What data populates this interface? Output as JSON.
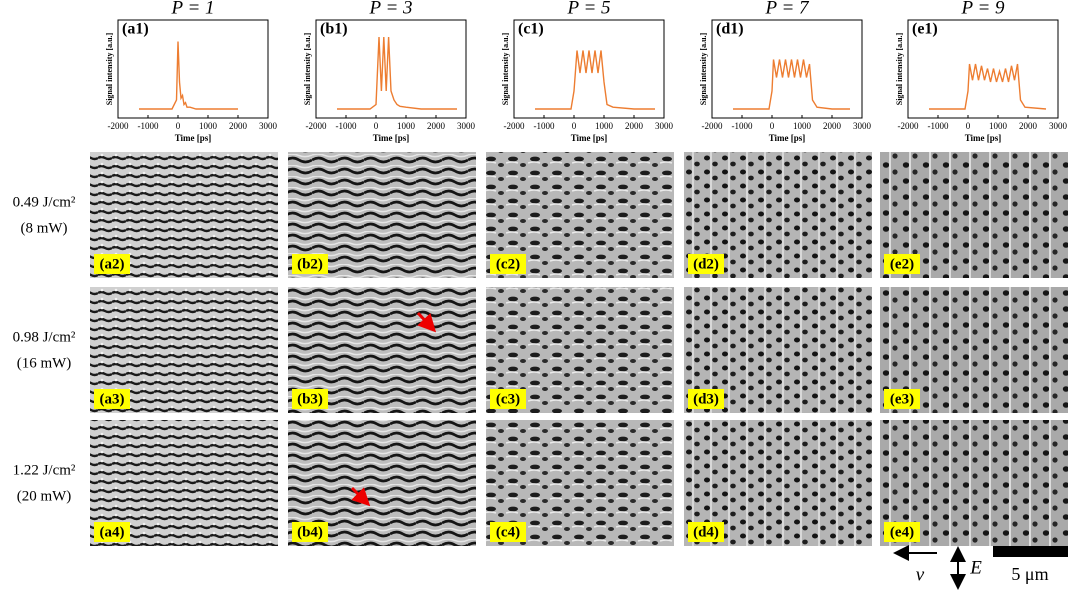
{
  "chart_data": [
    {
      "type": "line",
      "title": "P = 1",
      "panel_label": "(a1)",
      "x_label": "Time [ps]",
      "y_label": "Signal intensity [a.u.]",
      "color": "#ed7d31",
      "xlim": [
        -2000,
        3000
      ],
      "xticks": [
        -2000,
        -1000,
        0,
        1000,
        2000,
        3000
      ],
      "ylim": [
        0,
        1
      ],
      "x": [
        -1300,
        -200,
        -50,
        0,
        50,
        100,
        150,
        200,
        250,
        300,
        400,
        600,
        1000,
        1500,
        2000
      ],
      "values": [
        0.1,
        0.1,
        0.2,
        0.85,
        0.4,
        0.22,
        0.25,
        0.15,
        0.17,
        0.12,
        0.12,
        0.1,
        0.1,
        0.1,
        0.1
      ]
    },
    {
      "type": "line",
      "title": "P = 3",
      "panel_label": "(b1)",
      "x_label": "Time [ps]",
      "y_label": "Signal intensity [a.u.]",
      "color": "#ed7d31",
      "xlim": [
        -2000,
        3000
      ],
      "xticks": [
        -2000,
        -1000,
        0,
        1000,
        2000,
        3000
      ],
      "ylim": [
        0,
        1
      ],
      "x": [
        -1300,
        -200,
        0,
        100,
        180,
        260,
        340,
        420,
        500,
        600,
        700,
        800,
        1000,
        1500,
        2000,
        2700
      ],
      "values": [
        0.1,
        0.1,
        0.15,
        0.9,
        0.3,
        0.9,
        0.3,
        0.9,
        0.3,
        0.2,
        0.15,
        0.13,
        0.12,
        0.1,
        0.1,
        0.1
      ]
    },
    {
      "type": "line",
      "title": "P = 5",
      "panel_label": "(c1)",
      "x_label": "Time [ps]",
      "y_label": "Signal intensity [a.u.]",
      "color": "#ed7d31",
      "xlim": [
        -2000,
        3000
      ],
      "xticks": [
        -2000,
        -1000,
        0,
        1000,
        2000,
        3000
      ],
      "ylim": [
        0,
        1
      ],
      "x": [
        -1300,
        -100,
        0,
        100,
        200,
        300,
        400,
        500,
        600,
        700,
        800,
        900,
        1000,
        1100,
        1300,
        2000,
        2700
      ],
      "values": [
        0.1,
        0.1,
        0.3,
        0.75,
        0.5,
        0.75,
        0.5,
        0.75,
        0.5,
        0.75,
        0.5,
        0.75,
        0.4,
        0.15,
        0.12,
        0.1,
        0.1
      ]
    },
    {
      "type": "line",
      "title": "P = 7",
      "panel_label": "(d1)",
      "x_label": "Time [ps]",
      "y_label": "Signal intensity [a.u.]",
      "color": "#ed7d31",
      "xlim": [
        -2000,
        3000
      ],
      "xticks": [
        -2000,
        -1000,
        0,
        1000,
        2000,
        3000
      ],
      "ylim": [
        0,
        1
      ],
      "x": [
        -1300,
        -100,
        0,
        50,
        150,
        250,
        350,
        450,
        550,
        650,
        750,
        850,
        950,
        1050,
        1150,
        1250,
        1350,
        1500,
        2000,
        2600
      ],
      "values": [
        0.1,
        0.1,
        0.3,
        0.65,
        0.45,
        0.65,
        0.45,
        0.65,
        0.45,
        0.65,
        0.45,
        0.65,
        0.45,
        0.65,
        0.45,
        0.6,
        0.2,
        0.12,
        0.1,
        0.1
      ]
    },
    {
      "type": "line",
      "title": "P = 9",
      "panel_label": "(e1)",
      "x_label": "Time [ps]",
      "y_label": "Signal intensity [a.u.]",
      "color": "#ed7d31",
      "xlim": [
        -2000,
        3000
      ],
      "xticks": [
        -2000,
        -1000,
        0,
        1000,
        2000,
        3000
      ],
      "ylim": [
        0,
        1
      ],
      "x": [
        -1300,
        -100,
        0,
        50,
        150,
        250,
        350,
        450,
        550,
        650,
        750,
        850,
        950,
        1050,
        1150,
        1250,
        1350,
        1450,
        1550,
        1650,
        1750,
        1900,
        2600
      ],
      "values": [
        0.1,
        0.1,
        0.3,
        0.6,
        0.42,
        0.6,
        0.42,
        0.58,
        0.42,
        0.55,
        0.4,
        0.55,
        0.4,
        0.52,
        0.4,
        0.55,
        0.4,
        0.58,
        0.42,
        0.6,
        0.2,
        0.12,
        0.1
      ]
    }
  ],
  "images": {
    "rows": [
      {
        "label_lines": [
          "0.49 J/cm²",
          "(8 mW)"
        ],
        "panels": [
          "(a2)",
          "(b2)",
          "(c2)",
          "(d2)",
          "(e2)"
        ]
      },
      {
        "label_lines": [
          "0.98 J/cm²",
          "(16 mW)"
        ],
        "panels": [
          "(a3)",
          "(b3)",
          "(c3)",
          "(d3)",
          "(e3)"
        ]
      },
      {
        "label_lines": [
          "1.22 J/cm²",
          "(20 mW)"
        ],
        "panels": [
          "(a4)",
          "(b4)",
          "(c4)",
          "(d4)",
          "(e4)"
        ]
      }
    ]
  },
  "legend": {
    "velocity": "v",
    "field": "E",
    "scale": "5 μm"
  }
}
